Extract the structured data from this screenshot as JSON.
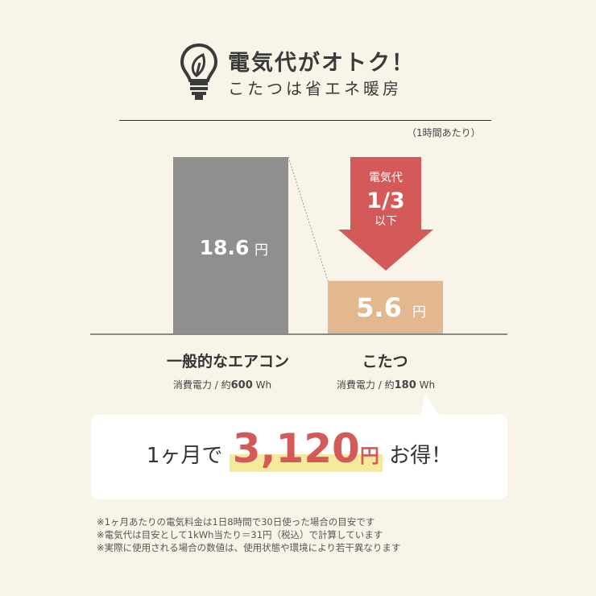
{
  "header": {
    "icon": "lightbulb-leaf-icon",
    "title": "電気代がオトク！",
    "subtitle": "こたつは省エネ暖房",
    "unit_note": "（1時間あたり）"
  },
  "chart_data": {
    "type": "bar",
    "categories": [
      "一般的なエアコン",
      "こたつ"
    ],
    "values": [
      18.6,
      5.6
    ],
    "value_labels": [
      "18.6",
      "5.6"
    ],
    "value_unit": "円",
    "colors": [
      "#8f8f8f",
      "#e4b88f"
    ],
    "specs": [
      {
        "prefix": "消費電力 / 約",
        "value": "600",
        "unit": "Wh"
      },
      {
        "prefix": "消費電力 / 約",
        "value": "180",
        "unit": "Wh"
      }
    ],
    "annotation": {
      "line1": "電気代",
      "line2": "1/3",
      "line3": "以下",
      "color": "#d45a5a"
    }
  },
  "callout": {
    "prefix": "1ヶ月で",
    "amount": "3,120",
    "yen": "円",
    "suffix": "お得！"
  },
  "notes": [
    "※1ヶ月あたりの電気料金は1日8時間で30日使った場合の目安です",
    "※電気代は目安として1kWh当たり＝31円（税込）で計算しています",
    "※実際に使用される場合の数値は、使用状態や環境により若干異なります"
  ]
}
